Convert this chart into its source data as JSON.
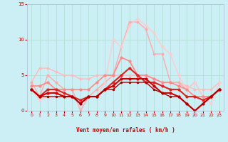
{
  "xlabel": "Vent moyen/en rafales ( km/h )",
  "background_color": "#cceef5",
  "grid_color": "#aaddcc",
  "text_color": "#cc0000",
  "xlim": [
    -0.5,
    23.5
  ],
  "ylim": [
    0,
    15
  ],
  "yticks": [
    0,
    5,
    10,
    15
  ],
  "xticks": [
    0,
    1,
    2,
    3,
    4,
    5,
    6,
    7,
    8,
    9,
    10,
    11,
    12,
    13,
    14,
    15,
    16,
    17,
    18,
    19,
    20,
    21,
    22,
    23
  ],
  "series": [
    {
      "x": [
        0,
        1,
        2,
        3,
        4,
        5,
        6,
        7,
        8,
        9,
        10,
        11,
        12,
        13,
        14,
        15,
        16,
        17,
        18,
        19,
        20,
        21,
        22,
        23
      ],
      "y": [
        4,
        6,
        6,
        5.5,
        5,
        5,
        4.5,
        4.5,
        5,
        5,
        5,
        5,
        5,
        5,
        5,
        4.5,
        4,
        4,
        4,
        3.5,
        3,
        3,
        3,
        4
      ],
      "color": "#ffbbbb",
      "lw": 1.0,
      "marker": "o",
      "ms": 1.8
    },
    {
      "x": [
        0,
        1,
        2,
        3,
        4,
        5,
        6,
        7,
        8,
        9,
        10,
        11,
        12,
        13,
        14,
        15,
        16,
        17,
        18,
        19,
        20,
        21,
        22,
        23
      ],
      "y": [
        4,
        2,
        5,
        4,
        3,
        3,
        0,
        2,
        3,
        4,
        5,
        9,
        12.5,
        12.5,
        11.5,
        8,
        8,
        4,
        4,
        3,
        4,
        2,
        2,
        3
      ],
      "color": "#ffaaaa",
      "lw": 1.0,
      "marker": "o",
      "ms": 1.8
    },
    {
      "x": [
        0,
        1,
        2,
        3,
        4,
        5,
        6,
        7,
        8,
        9,
        10,
        11,
        12,
        13,
        14,
        15,
        16,
        17,
        18,
        19,
        20,
        21,
        22,
        23
      ],
      "y": [
        3,
        1.5,
        2,
        3,
        2,
        2,
        1,
        2,
        2,
        4,
        10,
        9,
        12,
        13,
        12,
        11,
        9,
        8,
        5,
        3,
        4,
        2,
        1,
        4
      ],
      "color": "#ffcccc",
      "lw": 1.0,
      "marker": "o",
      "ms": 1.8
    },
    {
      "x": [
        0,
        1,
        2,
        3,
        4,
        5,
        6,
        7,
        8,
        9,
        10,
        11,
        12,
        13,
        14,
        15,
        16,
        17,
        18,
        19,
        20,
        21,
        22,
        23
      ],
      "y": [
        3.5,
        3.5,
        4,
        3,
        3,
        3,
        3,
        3,
        4,
        5,
        5,
        7.5,
        7,
        5,
        5,
        4.5,
        4,
        4,
        3.5,
        3,
        2,
        2,
        2,
        3
      ],
      "color": "#ff8888",
      "lw": 1.2,
      "marker": "o",
      "ms": 2.0
    },
    {
      "x": [
        0,
        1,
        2,
        3,
        4,
        5,
        6,
        7,
        8,
        9,
        10,
        11,
        12,
        13,
        14,
        15,
        16,
        17,
        18,
        19,
        20,
        21,
        22,
        23
      ],
      "y": [
        3,
        2,
        3,
        3,
        2.5,
        2,
        1.5,
        2,
        2,
        3,
        4,
        5,
        6,
        5,
        4,
        4,
        3.5,
        3,
        3,
        2,
        2,
        1.5,
        2,
        3
      ],
      "color": "#dd2222",
      "lw": 1.5,
      "marker": "o",
      "ms": 2.0
    },
    {
      "x": [
        0,
        1,
        2,
        3,
        4,
        5,
        6,
        7,
        8,
        9,
        10,
        11,
        12,
        13,
        14,
        15,
        16,
        17,
        18,
        19,
        20,
        21,
        22,
        23
      ],
      "y": [
        3,
        2,
        2.5,
        2.5,
        2,
        2,
        1,
        2,
        2,
        3,
        3.5,
        4.5,
        4.5,
        4.5,
        4.5,
        3.5,
        2.5,
        2.5,
        2,
        1,
        0,
        1,
        2,
        3
      ],
      "color": "#cc0000",
      "lw": 1.5,
      "marker": "o",
      "ms": 2.0
    },
    {
      "x": [
        0,
        1,
        2,
        3,
        4,
        5,
        6,
        7,
        8,
        9,
        10,
        11,
        12,
        13,
        14,
        15,
        16,
        17,
        18,
        19,
        20,
        21,
        22,
        23
      ],
      "y": [
        3,
        2,
        2,
        2,
        2,
        2,
        1,
        2,
        2,
        3,
        3,
        4,
        4,
        4,
        4,
        3,
        2.5,
        2,
        2,
        1,
        0,
        1,
        2,
        3
      ],
      "color": "#aa0000",
      "lw": 1.0,
      "marker": "o",
      "ms": 1.5
    }
  ]
}
